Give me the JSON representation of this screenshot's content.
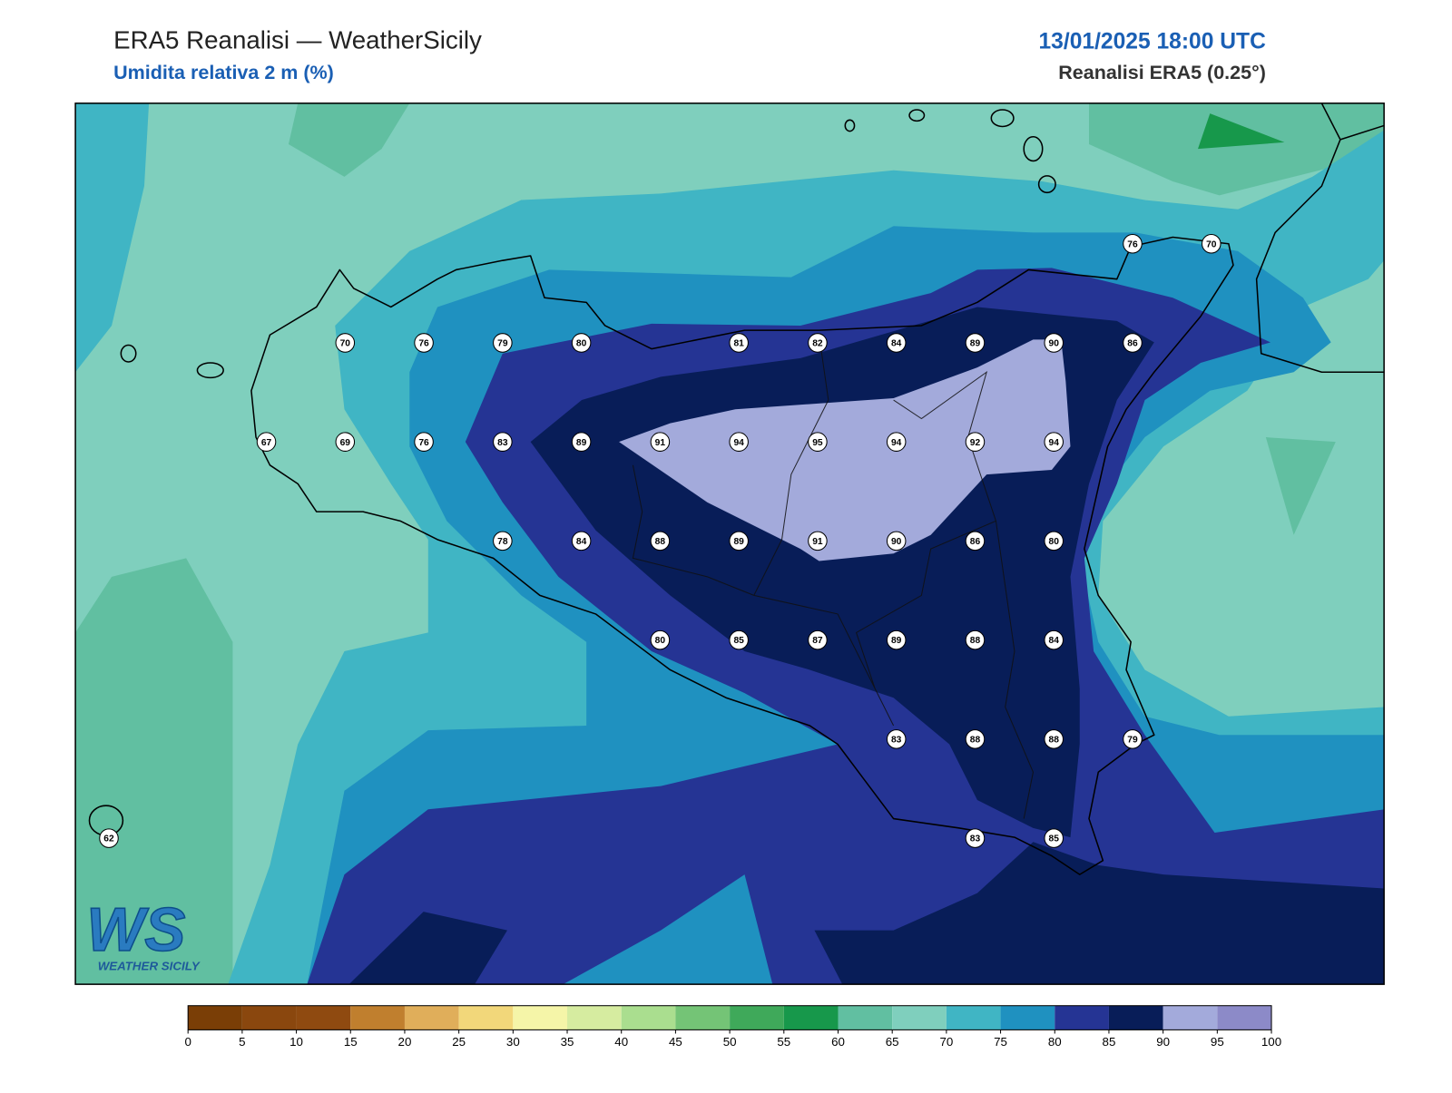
{
  "header": {
    "title": "ERA5 Reanalisi — WeatherSicily",
    "subtitle": "Umidita relativa 2 m (%)",
    "datetime": "13/01/2025 18:00 UTC",
    "source": "Reanalisi ERA5 (0.25°)"
  },
  "logo": {
    "mark": "WS",
    "name": "WEATHER SICILY"
  },
  "stations": {
    "grid": [
      [
        null,
        null,
        null,
        null,
        null,
        null,
        null,
        null,
        null,
        null,
        null,
        null,
        null,
        76,
        70
      ],
      [
        null,
        null,
        null,
        70,
        76,
        79,
        80,
        null,
        81,
        82,
        84,
        89,
        90,
        86,
        null
      ],
      [
        null,
        null,
        67,
        69,
        76,
        83,
        89,
        91,
        94,
        95,
        94,
        92,
        94,
        null,
        null
      ],
      [
        null,
        null,
        null,
        null,
        null,
        78,
        84,
        88,
        89,
        91,
        90,
        86,
        80,
        null,
        null
      ],
      [
        null,
        null,
        null,
        null,
        null,
        null,
        null,
        80,
        85,
        87,
        89,
        88,
        84,
        null,
        null
      ],
      [
        null,
        null,
        null,
        null,
        null,
        null,
        null,
        null,
        null,
        null,
        83,
        88,
        88,
        79,
        null
      ],
      [
        62,
        null,
        null,
        null,
        null,
        null,
        null,
        null,
        null,
        null,
        null,
        83,
        85,
        null,
        null
      ]
    ]
  },
  "colorbar": {
    "ticks": [
      0,
      5,
      10,
      15,
      20,
      25,
      30,
      35,
      40,
      45,
      50,
      55,
      60,
      65,
      70,
      75,
      80,
      85,
      90,
      95,
      100
    ],
    "colors": [
      "#7a3e06",
      "#8a470e",
      "#8f4a10",
      "#c07f2e",
      "#e0ae5a",
      "#f2d77a",
      "#f5f5a8",
      "#d6eca0",
      "#aade8f",
      "#74c476",
      "#3fa95a",
      "#17984b",
      "#61bfa1",
      "#7fcfbd",
      "#40b5c4",
      "#1f91c0",
      "#253494",
      "#081d58",
      "#a3aadb",
      "#8c8ac8"
    ]
  }
}
